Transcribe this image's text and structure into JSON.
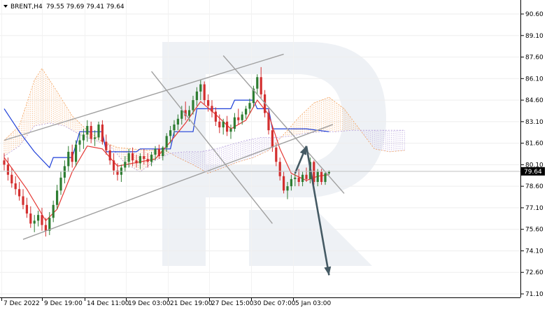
{
  "header": {
    "symbol": "BRENT,H4",
    "ohlc": "79.55 79.69 79.41 79.64"
  },
  "current_price_label": "79.64",
  "colors": {
    "bull_candle": "#2e7d32",
    "bear_candle": "#d32f2f",
    "tenkan": "#e53935",
    "kijun": "#1e3fd8",
    "kumo_bull": "#f4a460",
    "kumo_bear": "#b39ddb",
    "channel": "#a0a0a0",
    "arrow": "#455a64",
    "price_box": "#000000"
  },
  "icons": {
    "menu": "triangle-down-icon"
  },
  "chart_data": {
    "type": "candlestick",
    "instrument": "BRENT",
    "timeframe": "H4",
    "y_axis_ticks": [
      "90.60",
      "89.10",
      "87.60",
      "86.10",
      "84.60",
      "83.10",
      "81.60",
      "80.10",
      "78.60",
      "77.10",
      "75.60",
      "74.10",
      "72.60",
      "71.10"
    ],
    "x_axis_ticks": [
      "7 Dec 2022",
      "9 Dec 19:00",
      "14 Dec 11:00",
      "19 Dec 03:00",
      "21 Dec 19:00",
      "27 Dec 15:00",
      "30 Dec 07:00",
      "5 Jan 03:00"
    ],
    "ylim": [
      71.1,
      91.4
    ],
    "last_price": 79.64,
    "candles": [
      [
        80.4,
        80.9,
        79.7,
        80.1
      ],
      [
        80.1,
        80.6,
        79.0,
        79.4
      ],
      [
        79.4,
        79.9,
        78.5,
        78.8
      ],
      [
        78.8,
        79.3,
        78.0,
        78.4
      ],
      [
        78.4,
        78.9,
        77.6,
        77.9
      ],
      [
        77.9,
        78.4,
        77.0,
        77.3
      ],
      [
        77.3,
        77.8,
        76.4,
        76.7
      ],
      [
        76.7,
        77.2,
        75.7,
        76.0
      ],
      [
        76.0,
        76.6,
        75.4,
        76.2
      ],
      [
        76.2,
        76.9,
        75.8,
        76.6
      ],
      [
        76.6,
        77.1,
        75.5,
        75.9
      ],
      [
        75.9,
        76.4,
        75.1,
        75.5
      ],
      [
        75.5,
        76.8,
        75.2,
        76.4
      ],
      [
        76.4,
        77.6,
        76.1,
        77.3
      ],
      [
        77.3,
        78.7,
        77.0,
        78.3
      ],
      [
        78.3,
        79.6,
        78.0,
        79.2
      ],
      [
        79.2,
        80.4,
        78.8,
        80.0
      ],
      [
        80.0,
        81.4,
        79.6,
        81.0
      ],
      [
        81.0,
        81.5,
        79.9,
        80.3
      ],
      [
        80.3,
        81.8,
        80.0,
        81.5
      ],
      [
        81.5,
        82.3,
        81.0,
        81.8
      ],
      [
        81.8,
        82.6,
        81.2,
        82.2
      ],
      [
        82.2,
        83.2,
        81.7,
        82.8
      ],
      [
        82.8,
        83.1,
        81.6,
        81.9
      ],
      [
        81.9,
        82.5,
        81.4,
        82.0
      ],
      [
        82.0,
        83.1,
        81.8,
        82.9
      ],
      [
        82.9,
        83.2,
        81.5,
        81.7
      ],
      [
        81.7,
        82.2,
        80.8,
        81.1
      ],
      [
        81.1,
        81.5,
        80.1,
        80.4
      ],
      [
        80.4,
        80.9,
        79.4,
        79.7
      ],
      [
        79.7,
        80.2,
        79.0,
        79.4
      ],
      [
        79.4,
        80.1,
        78.9,
        79.9
      ],
      [
        79.9,
        80.7,
        79.6,
        80.3
      ],
      [
        80.3,
        81.2,
        79.9,
        80.9
      ],
      [
        80.9,
        81.3,
        80.0,
        80.4
      ],
      [
        80.4,
        80.8,
        79.9,
        80.2
      ],
      [
        80.2,
        80.9,
        79.8,
        80.7
      ],
      [
        80.7,
        81.2,
        80.1,
        80.5
      ],
      [
        80.5,
        80.9,
        79.9,
        80.3
      ],
      [
        80.3,
        81.0,
        80.0,
        80.8
      ],
      [
        80.8,
        81.4,
        80.4,
        81.2
      ],
      [
        81.2,
        81.5,
        80.5,
        80.7
      ],
      [
        80.7,
        81.4,
        80.4,
        81.3
      ],
      [
        81.3,
        82.3,
        81.0,
        82.1
      ],
      [
        82.1,
        82.8,
        81.6,
        82.5
      ],
      [
        82.5,
        83.2,
        82.1,
        82.9
      ],
      [
        82.9,
        83.6,
        82.5,
        83.3
      ],
      [
        83.3,
        84.2,
        82.9,
        83.9
      ],
      [
        83.9,
        84.5,
        83.2,
        83.5
      ],
      [
        83.5,
        84.2,
        83.1,
        83.9
      ],
      [
        83.9,
        84.9,
        83.6,
        84.6
      ],
      [
        84.6,
        85.5,
        84.2,
        85.2
      ],
      [
        85.2,
        86.0,
        84.6,
        85.7
      ],
      [
        85.7,
        85.9,
        84.3,
        84.6
      ],
      [
        84.6,
        85.0,
        83.8,
        84.2
      ],
      [
        84.2,
        84.6,
        83.4,
        83.8
      ],
      [
        83.8,
        84.1,
        82.8,
        83.1
      ],
      [
        83.1,
        83.6,
        82.3,
        82.7
      ],
      [
        82.7,
        83.3,
        82.2,
        83.1
      ],
      [
        83.1,
        83.5,
        82.1,
        82.4
      ],
      [
        82.4,
        82.9,
        81.9,
        82.6
      ],
      [
        82.6,
        83.7,
        82.4,
        83.4
      ],
      [
        83.4,
        84.0,
        82.9,
        83.2
      ],
      [
        83.2,
        83.8,
        82.9,
        83.6
      ],
      [
        83.6,
        84.2,
        83.3,
        84.0
      ],
      [
        84.0,
        84.7,
        83.7,
        84.4
      ],
      [
        84.4,
        85.6,
        84.1,
        85.4
      ],
      [
        85.4,
        86.4,
        85.0,
        86.2
      ],
      [
        86.2,
        86.9,
        84.7,
        85.0
      ],
      [
        85.0,
        85.3,
        83.4,
        83.7
      ],
      [
        83.7,
        84.0,
        82.2,
        82.5
      ],
      [
        82.5,
        82.8,
        81.0,
        81.3
      ],
      [
        81.3,
        81.6,
        80.0,
        80.3
      ],
      [
        80.3,
        80.6,
        79.0,
        79.3
      ],
      [
        79.3,
        79.6,
        78.1,
        78.3
      ],
      [
        78.3,
        78.9,
        77.7,
        78.6
      ],
      [
        78.6,
        79.4,
        78.3,
        79.1
      ],
      [
        79.1,
        79.5,
        78.6,
        79.2
      ],
      [
        79.2,
        79.8,
        78.6,
        78.9
      ],
      [
        78.9,
        79.6,
        78.6,
        79.4
      ],
      [
        79.4,
        79.9,
        78.9,
        79.1
      ],
      [
        79.1,
        80.6,
        78.8,
        80.3
      ],
      [
        80.3,
        80.4,
        78.7,
        78.9
      ],
      [
        78.9,
        79.8,
        78.6,
        79.6
      ],
      [
        79.6,
        79.8,
        78.7,
        78.9
      ],
      [
        78.9,
        79.6,
        78.7,
        79.5
      ],
      [
        79.5,
        79.7,
        79.4,
        79.6
      ]
    ],
    "tenkan": [
      [
        0,
        80.6
      ],
      [
        6,
        78.4
      ],
      [
        11,
        76.2
      ],
      [
        14,
        77.0
      ],
      [
        18,
        79.6
      ],
      [
        22,
        81.4
      ],
      [
        26,
        81.2
      ],
      [
        30,
        80.0
      ],
      [
        34,
        80.2
      ],
      [
        40,
        80.5
      ],
      [
        44,
        81.7
      ],
      [
        48,
        83.0
      ],
      [
        52,
        84.5
      ],
      [
        56,
        83.6
      ],
      [
        60,
        82.6
      ],
      [
        64,
        83.2
      ],
      [
        67,
        84.6
      ],
      [
        70,
        83.6
      ],
      [
        73,
        81.2
      ],
      [
        76,
        79.5
      ],
      [
        80,
        79.0
      ],
      [
        83,
        79.3
      ],
      [
        86,
        79.4
      ]
    ],
    "kijun": [
      [
        0,
        84.0
      ],
      [
        4,
        82.4
      ],
      [
        8,
        81.0
      ],
      [
        12,
        79.9
      ],
      [
        13,
        80.6
      ],
      [
        18,
        80.6
      ],
      [
        20,
        82.4
      ],
      [
        26,
        82.4
      ],
      [
        27,
        81.0
      ],
      [
        35,
        81.0
      ],
      [
        36,
        81.2
      ],
      [
        44,
        81.2
      ],
      [
        45,
        82.4
      ],
      [
        50,
        82.4
      ],
      [
        51,
        84.0
      ],
      [
        60,
        84.0
      ],
      [
        61,
        84.6
      ],
      [
        66,
        84.6
      ],
      [
        67,
        84.0
      ],
      [
        70,
        84.0
      ],
      [
        71,
        82.6
      ],
      [
        80,
        82.6
      ],
      [
        86,
        82.4
      ]
    ],
    "kumo_span_a": [
      [
        0,
        81.8
      ],
      [
        4,
        82.8
      ],
      [
        8,
        86.0
      ],
      [
        10,
        86.8
      ],
      [
        14,
        85.2
      ],
      [
        18,
        83.5
      ],
      [
        22,
        82.5
      ],
      [
        26,
        81.7
      ],
      [
        30,
        81.3
      ],
      [
        34,
        81.2
      ],
      [
        38,
        81.1
      ],
      [
        42,
        81.2
      ],
      [
        46,
        80.6
      ],
      [
        50,
        80.1
      ],
      [
        54,
        79.5
      ],
      [
        58,
        79.9
      ],
      [
        62,
        80.3
      ],
      [
        66,
        80.6
      ],
      [
        70,
        81.1
      ],
      [
        74,
        82.2
      ],
      [
        78,
        83.4
      ],
      [
        82,
        84.4
      ],
      [
        86,
        84.8
      ],
      [
        90,
        84.0
      ],
      [
        94,
        82.6
      ],
      [
        98,
        81.2
      ],
      [
        102,
        81.0
      ],
      [
        106,
        81.1
      ]
    ],
    "kumo_span_b": [
      [
        0,
        80.7
      ],
      [
        4,
        81.4
      ],
      [
        8,
        82.8
      ],
      [
        12,
        83.0
      ],
      [
        16,
        82.8
      ],
      [
        20,
        82.2
      ],
      [
        24,
        81.8
      ],
      [
        28,
        81.4
      ],
      [
        32,
        80.2
      ],
      [
        36,
        79.6
      ],
      [
        40,
        80.4
      ],
      [
        44,
        80.9
      ],
      [
        48,
        81.0
      ],
      [
        52,
        81.0
      ],
      [
        56,
        81.2
      ],
      [
        60,
        81.5
      ],
      [
        64,
        81.8
      ],
      [
        68,
        82.0
      ],
      [
        72,
        82.0
      ],
      [
        76,
        82.1
      ],
      [
        80,
        82.3
      ],
      [
        84,
        82.4
      ],
      [
        88,
        82.4
      ],
      [
        92,
        82.5
      ],
      [
        96,
        82.5
      ],
      [
        100,
        82.5
      ],
      [
        104,
        82.5
      ],
      [
        106,
        82.5
      ]
    ],
    "channel_lines": [
      {
        "name": "ascending-upper",
        "from": [
          0,
          81.8
        ],
        "to": [
          74,
          87.8
        ]
      },
      {
        "name": "ascending-lower",
        "from": [
          5,
          74.9
        ],
        "to": [
          87,
          82.9
        ]
      },
      {
        "name": "descending-upper",
        "from": [
          58,
          87.7
        ],
        "to": [
          90,
          78.1
        ]
      },
      {
        "name": "descending-lower",
        "from": [
          39,
          86.6
        ],
        "to": [
          71,
          76.0
        ]
      }
    ],
    "forecast_arrows": [
      {
        "from": [
          77,
          79.5
        ],
        "to": [
          80,
          81.4
        ]
      },
      {
        "from": [
          80,
          81.4
        ],
        "to": [
          86,
          72.4
        ]
      }
    ]
  }
}
